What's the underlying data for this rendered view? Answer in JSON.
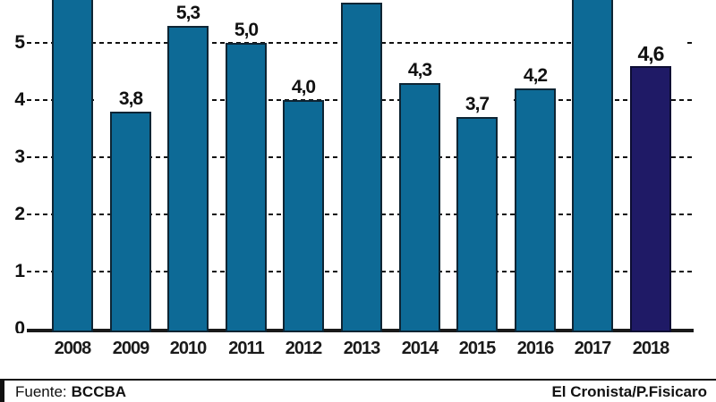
{
  "chart_data": {
    "type": "bar",
    "title": "",
    "xlabel": "",
    "ylabel": "",
    "categories": [
      "2008",
      "2009",
      "2010",
      "2011",
      "2012",
      "2013",
      "2014",
      "2015",
      "2016",
      "2017",
      "2018"
    ],
    "values": [
      null,
      3.8,
      5.3,
      5.0,
      4.0,
      5.7,
      4.3,
      3.7,
      4.2,
      null,
      4.6
    ],
    "bar_labels": [
      "",
      "3,8",
      "5,3",
      "5,0",
      "4,0",
      "",
      "4,3",
      "3,7",
      "4,2",
      "",
      "4,6"
    ],
    "cut_off_top": [
      "2008",
      "2017"
    ],
    "highlight_category": "2018",
    "gridlines": [
      1,
      2,
      3,
      4,
      5
    ],
    "y_axis_labels": [
      "0",
      "1",
      "2",
      "3",
      "4",
      "5"
    ],
    "ylim": [
      0,
      5.8
    ],
    "grid": "dashed-horizontal",
    "legend": "none",
    "colors": {
      "bar": "#0d6a96",
      "bar_border": "#0e2534",
      "highlight_bar": "#1f1a66",
      "highlight_border": "#0d0d33",
      "axis": "#1a1a1a"
    }
  },
  "footer": {
    "source_label": "Fuente:",
    "source_value": "BCCBA",
    "credit": "El Cronista/P.Fisicaro"
  }
}
